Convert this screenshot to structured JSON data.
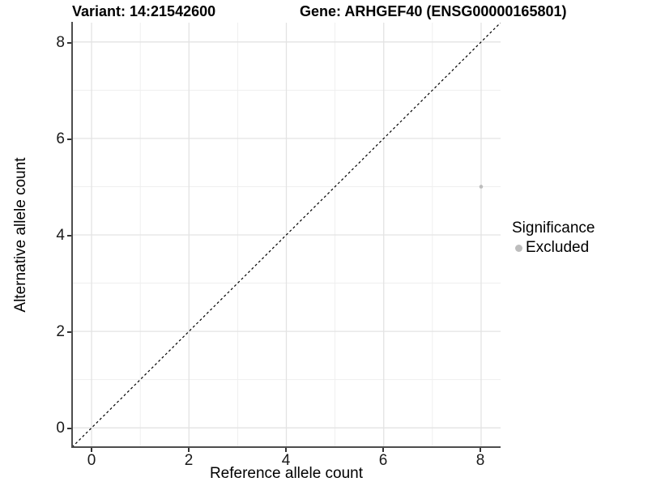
{
  "titles": {
    "variant": "Variant: 14:21542600",
    "gene": "Gene: ARHGEF40 (ENSG00000165801)"
  },
  "axes": {
    "x_label": "Reference allele count",
    "y_label": "Alternative allele count",
    "x_ticks": [
      "0",
      "2",
      "4",
      "6",
      "8"
    ],
    "y_ticks": [
      "0",
      "2",
      "4",
      "6",
      "8"
    ]
  },
  "legend": {
    "title": "Significance",
    "items": [
      {
        "label": "Excluded",
        "color": "#bdbdbd"
      }
    ]
  },
  "chart_data": {
    "type": "scatter",
    "title_left": "Variant: 14:21542600",
    "title_right": "Gene: ARHGEF40 (ENSG00000165801)",
    "xlabel": "Reference allele count",
    "ylabel": "Alternative allele count",
    "xlim": [
      -0.4,
      8.4
    ],
    "ylim": [
      -0.4,
      8.4
    ],
    "major_ticks": [
      0,
      2,
      4,
      6,
      8
    ],
    "minor_gridlines": [
      1,
      3,
      5,
      7
    ],
    "grid": true,
    "legend_position": "right",
    "legend_title": "Significance",
    "reference_line": {
      "type": "identity y=x",
      "style": "dashed",
      "color": "#000000"
    },
    "series": [
      {
        "name": "Excluded",
        "color": "#bdbdbd",
        "points": [
          {
            "x": 8,
            "y": 5
          }
        ]
      }
    ],
    "style": {
      "major_grid_color": "#e3e3e3",
      "minor_grid_color": "#efefef",
      "axis_line_color": "#4d4d4d",
      "point_radius": 2.3,
      "legend_dot_radius": 4.5
    }
  }
}
